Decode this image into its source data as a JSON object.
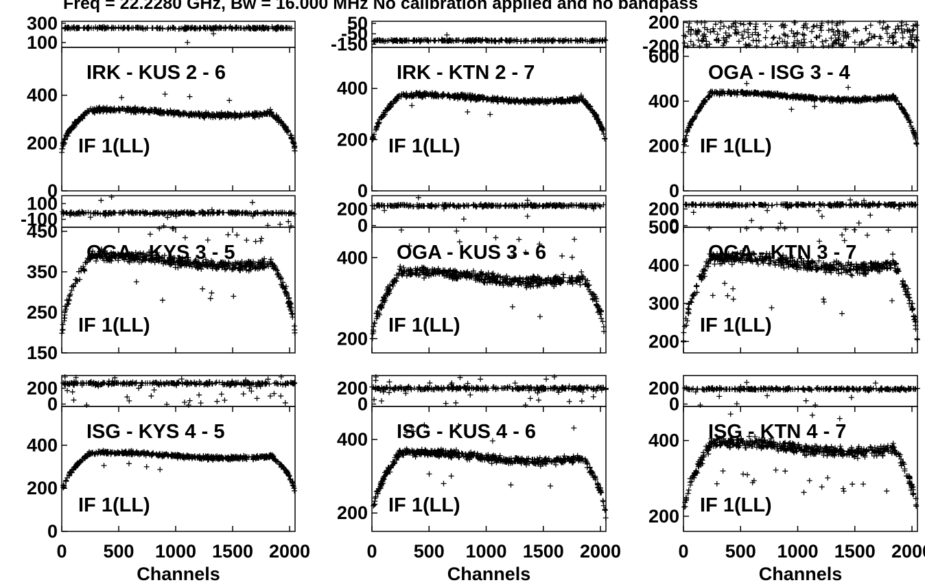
{
  "title": "Freq = 22.2280 GHz, Bw = 16.000 MHz    No calibration applied and no bandpass",
  "xlabel": "Channels",
  "chart_data": [
    {
      "type": "scatter",
      "baseline": "IRK - KUS",
      "antennas": "2 - 6",
      "if_label": "IF 1(LL)",
      "xlim": [
        0,
        2048
      ],
      "x_ticks": [
        "0",
        "500",
        "1000",
        "1500",
        "2000"
      ],
      "phase": {
        "ylim": [
          50,
          320
        ],
        "y_ticks": [
          "300",
          "100"
        ],
        "level": 250,
        "spread": 15,
        "outliers": 2
      },
      "amp": {
        "ylim": [
          0,
          600
        ],
        "y_ticks": [
          "400",
          "200",
          "0"
        ],
        "edge": 155,
        "plateau": 330,
        "noise": 14,
        "outliers": 4
      }
    },
    {
      "type": "scatter",
      "baseline": "IRK - KTN",
      "antennas": "2 - 7",
      "if_label": "IF 1(LL)",
      "xlim": [
        0,
        2048
      ],
      "x_ticks": [
        "0",
        "500",
        "1000",
        "1500",
        "2000"
      ],
      "phase": {
        "ylim": [
          -180,
          70
        ],
        "y_ticks": [
          "50",
          "-50",
          "-150"
        ],
        "level": -115,
        "spread": 14,
        "outliers": 1
      },
      "amp": {
        "ylim": [
          0,
          560
        ],
        "y_ticks": [
          "400",
          "200",
          "0"
        ],
        "edge": 165,
        "plateau": 365,
        "noise": 12,
        "outliers": 3
      }
    },
    {
      "type": "scatter",
      "baseline": "OGA - ISG",
      "antennas": "3 - 4",
      "if_label": "IF 1(LL)",
      "xlim": [
        0,
        2048
      ],
      "x_ticks": [
        "0",
        "500",
        "1000",
        "1500",
        "2000"
      ],
      "phase": {
        "ylim": [
          -220,
          220
        ],
        "y_ticks": [
          "200",
          "-200"
        ],
        "level": 0,
        "spread": 170,
        "outliers": 0
      },
      "amp": {
        "ylim": [
          0,
          640
        ],
        "y_ticks": [
          "600",
          "400",
          "200",
          "0"
        ],
        "edge": 160,
        "plateau": 425,
        "noise": 12,
        "outliers": 4
      }
    },
    {
      "type": "scatter",
      "baseline": "OGA - KYS",
      "antennas": "3 - 5",
      "if_label": "IF 1(LL)",
      "xlim": [
        0,
        2048
      ],
      "x_ticks": [
        "0",
        "500",
        "1000",
        "1500",
        "2000"
      ],
      "phase": {
        "ylim": [
          -200,
          200
        ],
        "y_ticks": [
          "100",
          "-100"
        ],
        "level": -20,
        "spread": 22,
        "outliers": 18
      },
      "amp": {
        "ylim": [
          150,
          460
        ],
        "y_ticks": [
          "450",
          "350",
          "250",
          "150"
        ],
        "edge": 175,
        "plateau": 380,
        "noise": 18,
        "outliers": 18
      }
    },
    {
      "type": "scatter",
      "baseline": "OGA - KUS",
      "antennas": "3 - 6",
      "if_label": "IF 1(LL)",
      "xlim": [
        0,
        2048
      ],
      "x_ticks": [
        "0",
        "500",
        "1000",
        "1500",
        "2000"
      ],
      "phase": {
        "ylim": [
          -20,
          360
        ],
        "y_ticks": [
          "200",
          "0"
        ],
        "level": 240,
        "spread": 22,
        "outliers": 8
      },
      "amp": {
        "ylim": [
          165,
          475
        ],
        "y_ticks": [
          "400",
          "200"
        ],
        "edge": 180,
        "plateau": 355,
        "noise": 18,
        "outliers": 14
      }
    },
    {
      "type": "scatter",
      "baseline": "OGA - KTN",
      "antennas": "3 - 7",
      "if_label": "IF 1(LL)",
      "xlim": [
        0,
        2048
      ],
      "x_ticks": [
        "0",
        "500",
        "1000",
        "1500",
        "2000"
      ],
      "phase": {
        "ylim": [
          -20,
          360
        ],
        "y_ticks": [
          "200",
          "0"
        ],
        "level": 250,
        "spread": 22,
        "outliers": 14
      },
      "amp": {
        "ylim": [
          170,
          500
        ],
        "y_ticks": [
          "500",
          "400",
          "300",
          "200"
        ],
        "edge": 185,
        "plateau": 410,
        "noise": 22,
        "outliers": 22
      }
    },
    {
      "type": "scatter",
      "baseline": "ISG - KYS",
      "antennas": "4 - 5",
      "if_label": "IF 1(LL)",
      "xlim": [
        0,
        2048
      ],
      "x_ticks": [
        "0",
        "500",
        "1000",
        "1500",
        "2000"
      ],
      "phase": {
        "ylim": [
          -30,
          360
        ],
        "y_ticks": [
          "200",
          "0"
        ],
        "level": 260,
        "spread": 28,
        "outliers": 40
      },
      "amp": {
        "ylim": [
          0,
          580
        ],
        "y_ticks": [
          "400",
          "200",
          "0"
        ],
        "edge": 160,
        "plateau": 355,
        "noise": 12,
        "outliers": 4
      }
    },
    {
      "type": "scatter",
      "baseline": "ISG - KUS",
      "antennas": "4 - 6",
      "if_label": "IF 1(LL)",
      "xlim": [
        0,
        2048
      ],
      "x_ticks": [
        "0",
        "500",
        "1000",
        "1500",
        "2000"
      ],
      "phase": {
        "ylim": [
          -30,
          360
        ],
        "y_ticks": [
          "200",
          "0"
        ],
        "level": 200,
        "spread": 32,
        "outliers": 30
      },
      "amp": {
        "ylim": [
          150,
          490
        ],
        "y_ticks": [
          "400",
          "200"
        ],
        "edge": 170,
        "plateau": 355,
        "noise": 15,
        "outliers": 12
      }
    },
    {
      "type": "scatter",
      "baseline": "ISG - KTN",
      "antennas": "4 - 7",
      "if_label": "IF 1(LL)",
      "xlim": [
        0,
        2048
      ],
      "x_ticks": [
        "0",
        "500",
        "1000",
        "1500",
        "2000"
      ],
      "phase": {
        "ylim": [
          -30,
          360
        ],
        "y_ticks": [
          "200",
          "0"
        ],
        "level": 190,
        "spread": 22,
        "outliers": 14
      },
      "amp": {
        "ylim": [
          160,
          490
        ],
        "y_ticks": [
          "400",
          "200"
        ],
        "edge": 180,
        "plateau": 385,
        "noise": 20,
        "outliers": 20
      }
    }
  ]
}
